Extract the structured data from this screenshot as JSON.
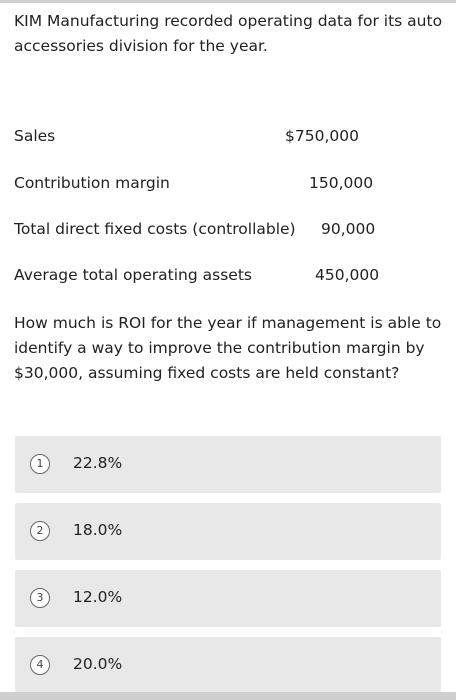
{
  "intro": "KIM Manufacturing recorded operating data for its auto accessories division for the year.",
  "rows": [
    {
      "label": "Sales",
      "value": "$750,000"
    },
    {
      "label": "Contribution margin",
      "value": "150,000"
    },
    {
      "label": "Total direct fixed costs (controllable)",
      "value": "90,000"
    },
    {
      "label": "Average total operating assets",
      "value": "450,000"
    }
  ],
  "question": "How much is ROI for the year if management is able to identify a way to improve the contribution margin by $30,000, assuming fixed costs are held constant?",
  "options": [
    {
      "number": "1",
      "label": "22.8%"
    },
    {
      "number": "2",
      "label": "18.0%"
    },
    {
      "number": "3",
      "label": "12.0%"
    },
    {
      "number": "4",
      "label": "20.0%"
    }
  ]
}
